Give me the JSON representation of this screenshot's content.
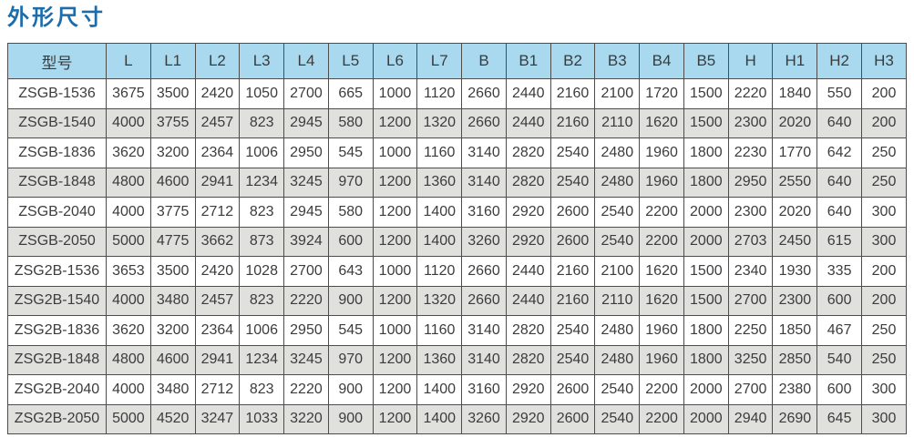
{
  "title": "外形尺寸",
  "colors": {
    "title_text": "#1e6dab",
    "header_bg": "#a9d9ee",
    "row_alt_bg": "#e0e0dd",
    "grid_border": "#4d4d4d",
    "cell_text": "#3c3c3c"
  },
  "table": {
    "columns": [
      "型号",
      "L",
      "L1",
      "L2",
      "L3",
      "L4",
      "L5",
      "L6",
      "L7",
      "B",
      "B1",
      "B2",
      "B3",
      "B4",
      "B5",
      "H",
      "H1",
      "H2",
      "H3"
    ],
    "rows": [
      [
        "ZSGB-1536",
        "3675",
        "3500",
        "2420",
        "1050",
        "2700",
        "665",
        "1000",
        "1120",
        "2660",
        "2440",
        "2160",
        "2100",
        "1720",
        "1500",
        "2220",
        "1840",
        "550",
        "200"
      ],
      [
        "ZSGB-1540",
        "4000",
        "3755",
        "2457",
        "823",
        "2945",
        "580",
        "1200",
        "1320",
        "2660",
        "2440",
        "2160",
        "2110",
        "1620",
        "1500",
        "2300",
        "2020",
        "640",
        "200"
      ],
      [
        "ZSGB-1836",
        "3620",
        "3200",
        "2364",
        "1006",
        "2950",
        "545",
        "1000",
        "1160",
        "3140",
        "2820",
        "2540",
        "2480",
        "1960",
        "1800",
        "2230",
        "1770",
        "642",
        "250"
      ],
      [
        "ZSGB-1848",
        "4800",
        "4600",
        "2941",
        "1234",
        "3245",
        "970",
        "1200",
        "1360",
        "3140",
        "2820",
        "2540",
        "2480",
        "1960",
        "1800",
        "2950",
        "2550",
        "640",
        "250"
      ],
      [
        "ZSGB-2040",
        "4000",
        "3775",
        "2712",
        "823",
        "2945",
        "580",
        "1200",
        "1400",
        "3160",
        "2920",
        "2600",
        "2540",
        "2200",
        "2000",
        "2300",
        "2020",
        "640",
        "300"
      ],
      [
        "ZSGB-2050",
        "5000",
        "4775",
        "3662",
        "873",
        "3924",
        "600",
        "1200",
        "1400",
        "3260",
        "2920",
        "2600",
        "2540",
        "2200",
        "2000",
        "2703",
        "2450",
        "615",
        "300"
      ],
      [
        "ZSG2B-1536",
        "3653",
        "3500",
        "2420",
        "1028",
        "2700",
        "643",
        "1000",
        "1120",
        "2660",
        "2440",
        "2160",
        "2100",
        "1620",
        "1500",
        "2340",
        "1930",
        "335",
        "200"
      ],
      [
        "ZSG2B-1540",
        "4000",
        "3480",
        "2457",
        "823",
        "2220",
        "900",
        "1200",
        "1320",
        "2660",
        "2440",
        "2160",
        "2110",
        "1620",
        "1500",
        "2700",
        "2300",
        "600",
        "200"
      ],
      [
        "ZSG2B-1836",
        "3620",
        "3200",
        "2364",
        "1006",
        "2950",
        "545",
        "1000",
        "1160",
        "3140",
        "2820",
        "2540",
        "2480",
        "1960",
        "1800",
        "2250",
        "1850",
        "467",
        "250"
      ],
      [
        "ZSG2B-1848",
        "4800",
        "4600",
        "2941",
        "1234",
        "3245",
        "970",
        "1200",
        "1360",
        "3140",
        "2820",
        "2540",
        "2480",
        "1960",
        "1800",
        "3250",
        "2850",
        "540",
        "250"
      ],
      [
        "ZSG2B-2040",
        "4000",
        "3480",
        "2712",
        "823",
        "2220",
        "900",
        "1200",
        "1400",
        "3160",
        "2920",
        "2600",
        "2540",
        "2200",
        "2000",
        "2700",
        "2380",
        "600",
        "300"
      ],
      [
        "ZSG2B-2050",
        "5000",
        "4520",
        "3247",
        "1033",
        "3220",
        "900",
        "1200",
        "1400",
        "3260",
        "2920",
        "2600",
        "2540",
        "2200",
        "2000",
        "2940",
        "2690",
        "645",
        "300"
      ]
    ]
  }
}
